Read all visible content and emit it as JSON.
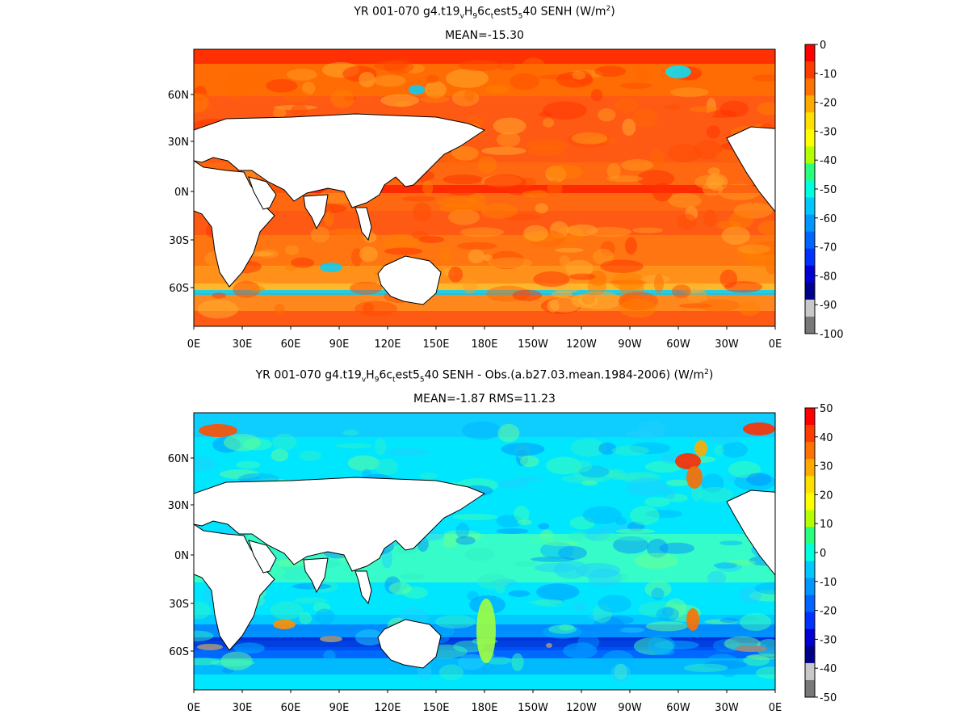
{
  "panels": [
    {
      "title_html": "YR 001-070 g4.t19<sub>v</sub>H<sub>9</sub>6c<sub>t</sub>est5<sub>5</sub>40  SENH (W/m<sup>2</sup>)",
      "stats": "MEAN=-15.30"
    },
    {
      "title_html": "YR 001-070 g4.t19<sub>v</sub>H<sub>9</sub>6c<sub>t</sub>est5<sub>5</sub>40 SENH - Obs.(a.b27.03.mean.1984-2006) (W/m<sup>2</sup>)",
      "stats": "MEAN=-1.87 RMS=11.23"
    }
  ],
  "chart_data": [
    {
      "type": "heatmap",
      "title": "YR 001-070 g4.t19vH96ctest5540  SENH (W/m2)",
      "subtitle": "MEAN=-15.30",
      "x_tick_labels": [
        "0E",
        "30E",
        "60E",
        "90E",
        "120E",
        "150E",
        "180E",
        "150W",
        "120W",
        "90W",
        "60W",
        "30W",
        "0E"
      ],
      "y_tick_labels": [
        "60N",
        "30N",
        "0N",
        "30S",
        "60S"
      ],
      "colorbar": {
        "ticks": [
          0,
          -10,
          -20,
          -30,
          -40,
          -50,
          -60,
          -70,
          -80,
          -90,
          -100
        ],
        "colors": [
          "#ff0000",
          "#ff3c00",
          "#ff7200",
          "#ffaa00",
          "#ffe000",
          "#ffff00",
          "#b4ff00",
          "#28ff7c",
          "#00ffdc",
          "#00c8ff",
          "#0096ff",
          "#0064ff",
          "#0032ff",
          "#0000d2",
          "#00008c",
          "#c8c8c8",
          "#787878"
        ]
      }
    },
    {
      "type": "heatmap",
      "title": "YR 001-070 g4.t19vH96ctest5540 SENH - Obs.(a.b27.03.mean.1984-2006) (W/m2)",
      "subtitle": "MEAN=-1.87 RMS=11.23",
      "x_tick_labels": [
        "0E",
        "30E",
        "60E",
        "90E",
        "120E",
        "150E",
        "180E",
        "150W",
        "120W",
        "90W",
        "60W",
        "30W",
        "0E"
      ],
      "y_tick_labels": [
        "60N",
        "30N",
        "0N",
        "30S",
        "60S"
      ],
      "colorbar": {
        "ticks": [
          50,
          40,
          30,
          20,
          10,
          0,
          -10,
          -20,
          -30,
          -40,
          -50
        ],
        "colors": [
          "#ff0000",
          "#ff3c00",
          "#ff7200",
          "#ffaa00",
          "#ffe000",
          "#ffff00",
          "#b4ff00",
          "#28ff7c",
          "#00ffdc",
          "#00c8ff",
          "#0096ff",
          "#0064ff",
          "#0032ff",
          "#0000d2",
          "#00008c",
          "#c8c8c8",
          "#787878"
        ]
      }
    }
  ]
}
